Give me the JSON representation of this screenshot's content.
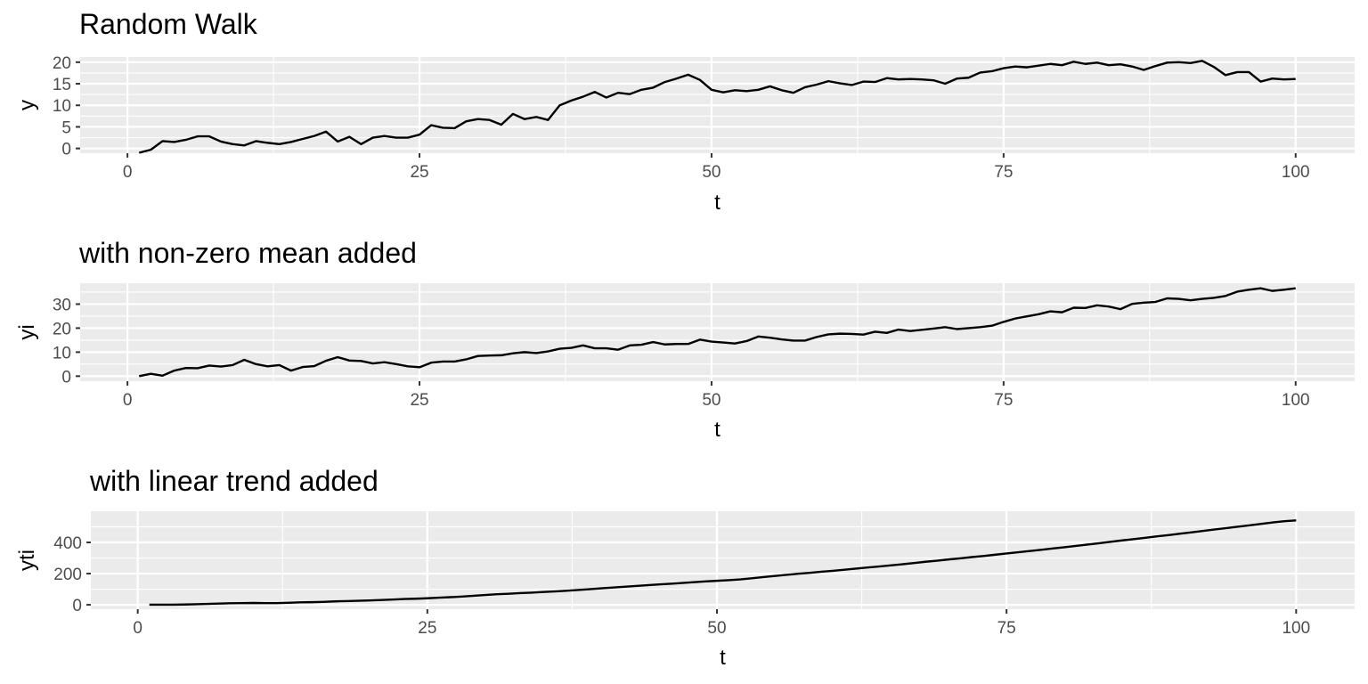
{
  "chart_data": [
    {
      "type": "line",
      "title": "Random Walk",
      "xlabel": "t",
      "ylabel": "y",
      "xlim": [
        -4.05,
        105.05
      ],
      "ylim": [
        -1.1,
        21.2
      ],
      "xticks": [
        0,
        25,
        50,
        75,
        100
      ],
      "yticks": [
        0,
        5,
        10,
        15,
        20
      ],
      "grid": true,
      "series": [
        {
          "x": [
            1,
            2,
            3,
            4,
            5,
            6,
            7,
            8,
            9,
            10,
            11,
            12,
            13,
            14,
            15,
            16,
            17,
            18,
            19,
            20,
            21,
            22,
            23,
            24,
            25,
            26,
            27,
            28,
            29,
            30,
            31,
            32,
            33,
            34,
            35,
            36,
            37,
            38,
            39,
            40,
            41,
            42,
            43,
            44,
            45,
            46,
            47,
            48,
            49,
            50,
            51,
            52,
            53,
            54,
            55,
            56,
            57,
            58,
            59,
            60,
            61,
            62,
            63,
            64,
            65,
            66,
            67,
            68,
            69,
            70,
            71,
            72,
            73,
            74,
            75,
            76,
            77,
            78,
            79,
            80,
            81,
            82,
            83,
            84,
            85,
            86,
            87,
            88,
            89,
            90,
            91,
            92,
            93,
            94,
            95,
            96,
            97,
            98,
            99,
            100
          ],
          "values": [
            -1.0,
            -0.3,
            1.7,
            1.5,
            2.0,
            2.8,
            2.8,
            1.6,
            1.0,
            0.7,
            1.7,
            1.3,
            1.0,
            1.5,
            2.2,
            2.9,
            3.9,
            1.6,
            2.7,
            1.0,
            2.5,
            2.9,
            2.5,
            2.5,
            3.2,
            5.4,
            4.8,
            4.7,
            6.3,
            6.8,
            6.6,
            5.5,
            8.0,
            6.8,
            7.3,
            6.6,
            10.0,
            11.1,
            12.0,
            13.1,
            11.8,
            12.9,
            12.6,
            13.6,
            14.1,
            15.4,
            16.2,
            17.1,
            15.9,
            13.6,
            13.0,
            13.5,
            13.3,
            13.6,
            14.4,
            13.5,
            12.9,
            14.2,
            14.8,
            15.6,
            15.1,
            14.7,
            15.5,
            15.4,
            16.3,
            16.0,
            16.1,
            16.0,
            15.8,
            15.0,
            16.2,
            16.4,
            17.6,
            17.9,
            18.6,
            19.0,
            18.8,
            19.2,
            19.6,
            19.3,
            20.1,
            19.6,
            19.9,
            19.3,
            19.5,
            19.0,
            18.2,
            19.1,
            19.9,
            20.0,
            19.8,
            20.3,
            18.9,
            17.0,
            17.7,
            17.7,
            15.5,
            16.2,
            16.0,
            16.1
          ]
        }
      ]
    },
    {
      "type": "line",
      "title": "with non-zero mean added",
      "xlabel": "t",
      "ylabel": "yi",
      "xlim": [
        -4.05,
        105.05
      ],
      "ylim": [
        -2.1,
        38.7
      ],
      "xticks": [
        0,
        25,
        50,
        75,
        100
      ],
      "yticks": [
        0,
        10,
        20,
        30
      ],
      "grid": true,
      "series": [
        {
          "x": [
            1,
            2,
            3,
            4,
            5,
            6,
            7,
            8,
            9,
            10,
            11,
            12,
            13,
            14,
            15,
            16,
            17,
            18,
            19,
            20,
            21,
            22,
            23,
            24,
            25,
            26,
            27,
            28,
            29,
            30,
            31,
            32,
            33,
            34,
            35,
            36,
            37,
            38,
            39,
            40,
            41,
            42,
            43,
            44,
            45,
            46,
            47,
            48,
            49,
            50,
            51,
            52,
            53,
            54,
            55,
            56,
            57,
            58,
            59,
            60,
            61,
            62,
            63,
            64,
            65,
            66,
            67,
            68,
            69,
            70,
            71,
            72,
            73,
            74,
            75,
            76,
            77,
            78,
            79,
            80,
            81,
            82,
            83,
            84,
            85,
            86,
            87,
            88,
            89,
            90,
            91,
            92,
            93,
            94,
            95,
            96,
            97,
            98,
            99,
            100
          ],
          "values": [
            0.0,
            1.0,
            0.2,
            2.3,
            3.4,
            3.3,
            4.4,
            4.0,
            4.6,
            6.8,
            5.0,
            4.1,
            4.6,
            2.3,
            3.8,
            4.2,
            6.4,
            7.9,
            6.5,
            6.3,
            5.3,
            5.8,
            5.0,
            4.1,
            3.7,
            5.6,
            6.1,
            6.1,
            7.0,
            8.4,
            8.6,
            8.7,
            9.5,
            10.0,
            9.6,
            10.3,
            11.4,
            11.8,
            12.8,
            11.6,
            11.6,
            11.0,
            12.8,
            13.1,
            14.2,
            13.2,
            13.4,
            13.4,
            15.2,
            14.4,
            14.0,
            13.6,
            14.6,
            16.5,
            16.0,
            15.3,
            14.8,
            14.8,
            16.3,
            17.4,
            17.7,
            17.6,
            17.3,
            18.5,
            18.0,
            19.4,
            18.8,
            19.3,
            19.8,
            20.4,
            19.6,
            20.0,
            20.4,
            21.0,
            22.6,
            24.0,
            24.9,
            25.8,
            27.0,
            26.6,
            28.5,
            28.4,
            29.5,
            29.0,
            27.9,
            30.1,
            30.6,
            30.9,
            32.4,
            32.2,
            31.6,
            32.2,
            32.6,
            33.4,
            35.2,
            36.0,
            36.6,
            35.5,
            36.0,
            36.6
          ]
        }
      ]
    },
    {
      "type": "line",
      "title": "with linear trend added",
      "xlabel": "t",
      "ylabel": "yti",
      "xlim": [
        -4.05,
        105.05
      ],
      "ylim": [
        -28,
        600
      ],
      "xticks": [
        0,
        25,
        50,
        75,
        100
      ],
      "yticks": [
        0,
        200,
        400
      ],
      "grid": true,
      "series": [
        {
          "x": [
            1,
            2,
            3,
            4,
            5,
            6,
            7,
            8,
            9,
            10,
            11,
            12,
            13,
            14,
            15,
            16,
            17,
            18,
            19,
            20,
            21,
            22,
            23,
            24,
            25,
            26,
            27,
            28,
            29,
            30,
            31,
            32,
            33,
            34,
            35,
            36,
            37,
            38,
            39,
            40,
            41,
            42,
            43,
            44,
            45,
            46,
            47,
            48,
            49,
            50,
            51,
            52,
            53,
            54,
            55,
            56,
            57,
            58,
            59,
            60,
            61,
            62,
            63,
            64,
            65,
            66,
            67,
            68,
            69,
            70,
            71,
            72,
            73,
            74,
            75,
            76,
            77,
            78,
            79,
            80,
            81,
            82,
            83,
            84,
            85,
            86,
            87,
            88,
            89,
            90,
            91,
            92,
            93,
            94,
            95,
            96,
            97,
            98,
            99,
            100
          ],
          "values": [
            1,
            1,
            1,
            2,
            4,
            6,
            8,
            10,
            11,
            12,
            11,
            11,
            13,
            16,
            17,
            19,
            22,
            24,
            26,
            28,
            31,
            34,
            37,
            39,
            42,
            46,
            49,
            53,
            58,
            63,
            68,
            71,
            75,
            78,
            82,
            86,
            90,
            95,
            100,
            106,
            111,
            116,
            121,
            126,
            131,
            135,
            140,
            145,
            150,
            154,
            158,
            163,
            170,
            178,
            185,
            192,
            199,
            205,
            212,
            218,
            225,
            232,
            239,
            246,
            253,
            260,
            268,
            276,
            283,
            291,
            298,
            306,
            313,
            321,
            329,
            337,
            345,
            353,
            361,
            369,
            378,
            386,
            395,
            404,
            413,
            421,
            430,
            439,
            447,
            456,
            465,
            474,
            483,
            492,
            501,
            510,
            519,
            528,
            536,
            541
          ]
        }
      ]
    }
  ]
}
